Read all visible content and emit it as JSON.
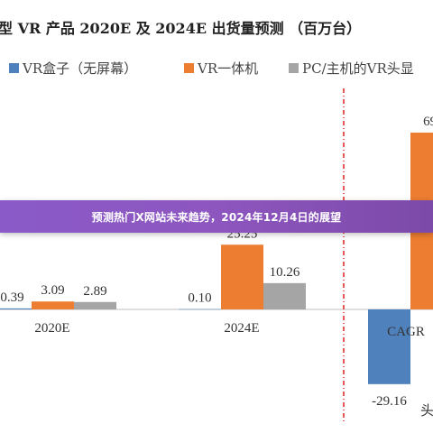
{
  "banner": {
    "text": "预测热门X网站未来趋势，2024年12月4日的展望"
  },
  "chart_data": {
    "type": "bar",
    "title": "型 VR 产品 2020E 及 2024E 出货量预测 （百万台）",
    "categories": [
      "2020E",
      "2024E",
      "CAGR"
    ],
    "series": [
      {
        "name": "VR盒子（无屏幕）",
        "color": "#4f81bd",
        "values": [
          0.39,
          0.1,
          -29.16
        ],
        "labels": [
          "0.39",
          "0.10",
          "-29.16"
        ]
      },
      {
        "name": "VR一体机",
        "color": "#ed7d31",
        "values": [
          3.09,
          25.25,
          69.0
        ],
        "labels": [
          "3.09",
          "25.25",
          "69."
        ]
      },
      {
        "name": "PC/主机的VR头显",
        "color": "#a5a5a5",
        "values": [
          2.89,
          10.26,
          null
        ],
        "labels": [
          "2.89",
          "10.26",
          ""
        ]
      }
    ],
    "legend_position": "top",
    "separator": "red dashed vertical line before CAGR",
    "partial_text_bottom_right": "头",
    "grid": false
  }
}
